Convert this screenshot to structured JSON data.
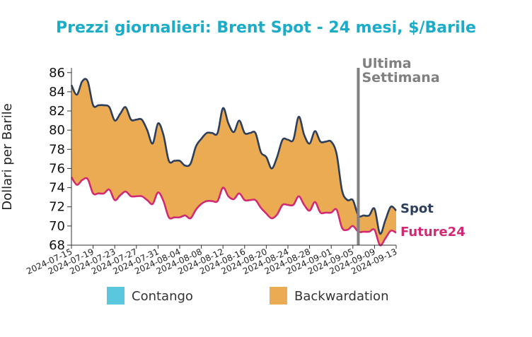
{
  "chart_data": {
    "type": "area",
    "title": "Prezzi giornalieri: Brent Spot - 24 mesi, $/Barile",
    "ylabel": "Dollari per Barile",
    "xlabel": "",
    "ylim": [
      68,
      86.5
    ],
    "yticks": [
      68,
      70,
      72,
      74,
      76,
      78,
      80,
      82,
      84,
      86
    ],
    "xticks": [
      "2024-07-15",
      "2024-07-19",
      "2024-07-23",
      "2024-07-27",
      "2024-07-31",
      "2024-08-04",
      "2024-08-08",
      "2024-08-12",
      "2024-08-16",
      "2024-08-20",
      "2024-08-24",
      "2024-08-28",
      "2024-09-01",
      "2024-09-05",
      "2024-09-09",
      "2024-09-13"
    ],
    "x": [
      "2024-07-15",
      "2024-07-16",
      "2024-07-17",
      "2024-07-18",
      "2024-07-19",
      "2024-07-20",
      "2024-07-21",
      "2024-07-22",
      "2024-07-23",
      "2024-07-24",
      "2024-07-25",
      "2024-07-26",
      "2024-07-27",
      "2024-07-28",
      "2024-07-29",
      "2024-07-30",
      "2024-07-31",
      "2024-08-01",
      "2024-08-02",
      "2024-08-03",
      "2024-08-04",
      "2024-08-05",
      "2024-08-06",
      "2024-08-07",
      "2024-08-08",
      "2024-08-09",
      "2024-08-10",
      "2024-08-11",
      "2024-08-12",
      "2024-08-13",
      "2024-08-14",
      "2024-08-15",
      "2024-08-16",
      "2024-08-17",
      "2024-08-18",
      "2024-08-19",
      "2024-08-20",
      "2024-08-21",
      "2024-08-22",
      "2024-08-23",
      "2024-08-24",
      "2024-08-25",
      "2024-08-26",
      "2024-08-27",
      "2024-08-28",
      "2024-08-29",
      "2024-08-30",
      "2024-08-31",
      "2024-09-01",
      "2024-09-02",
      "2024-09-03",
      "2024-09-04",
      "2024-09-05",
      "2024-09-06",
      "2024-09-07",
      "2024-09-08",
      "2024-09-09",
      "2024-09-10",
      "2024-09-11",
      "2024-09-12",
      "2024-09-13"
    ],
    "series": [
      {
        "name": "Spot",
        "color": "#2e3f5c",
        "values": [
          84.7,
          83.7,
          85.1,
          85.1,
          82.6,
          82.6,
          82.6,
          82.4,
          81.0,
          81.7,
          82.4,
          81.1,
          81.1,
          81.1,
          80.0,
          78.6,
          80.7,
          79.5,
          76.8,
          76.8,
          76.8,
          76.3,
          76.5,
          78.3,
          79.1,
          79.7,
          79.7,
          79.7,
          82.3,
          80.7,
          79.8,
          81.0,
          79.7,
          79.7,
          79.7,
          77.7,
          77.2,
          76.0,
          77.2,
          79.0,
          79.0,
          79.0,
          81.4,
          79.5,
          78.6,
          79.9,
          78.8,
          78.8,
          78.8,
          77.5,
          73.7,
          72.7,
          72.7,
          71.1,
          71.1,
          71.1,
          71.8,
          69.2,
          70.6,
          72.0,
          71.6
        ]
      },
      {
        "name": "Future24",
        "color": "#d12a74",
        "values": [
          75.1,
          74.3,
          74.8,
          74.9,
          73.4,
          73.4,
          73.4,
          73.8,
          72.7,
          73.2,
          73.6,
          73.1,
          73.1,
          73.1,
          72.7,
          72.3,
          73.5,
          72.6,
          70.9,
          70.9,
          70.9,
          71.1,
          70.8,
          71.7,
          72.3,
          72.6,
          72.6,
          72.6,
          74.0,
          73.1,
          72.8,
          73.4,
          72.7,
          72.7,
          72.7,
          71.9,
          71.3,
          70.8,
          71.2,
          72.2,
          72.2,
          72.2,
          73.1,
          72.2,
          71.6,
          72.5,
          71.4,
          71.4,
          71.4,
          71.7,
          69.8,
          69.6,
          70.0,
          69.4,
          69.4,
          69.4,
          69.6,
          68.0,
          68.7,
          69.5,
          69.3
        ]
      }
    ],
    "fills": {
      "backwardation_color": "#ebab53",
      "contango_color": "#5bc7de"
    },
    "vline": {
      "x": "2024-09-06",
      "label": "Ultima Settimana",
      "color": "#808080"
    },
    "legend": {
      "position": "bottom",
      "items": [
        {
          "label": "Contango",
          "color": "#5bc7de"
        },
        {
          "label": "Backwardation",
          "color": "#ebab53"
        }
      ]
    },
    "grid": false
  }
}
